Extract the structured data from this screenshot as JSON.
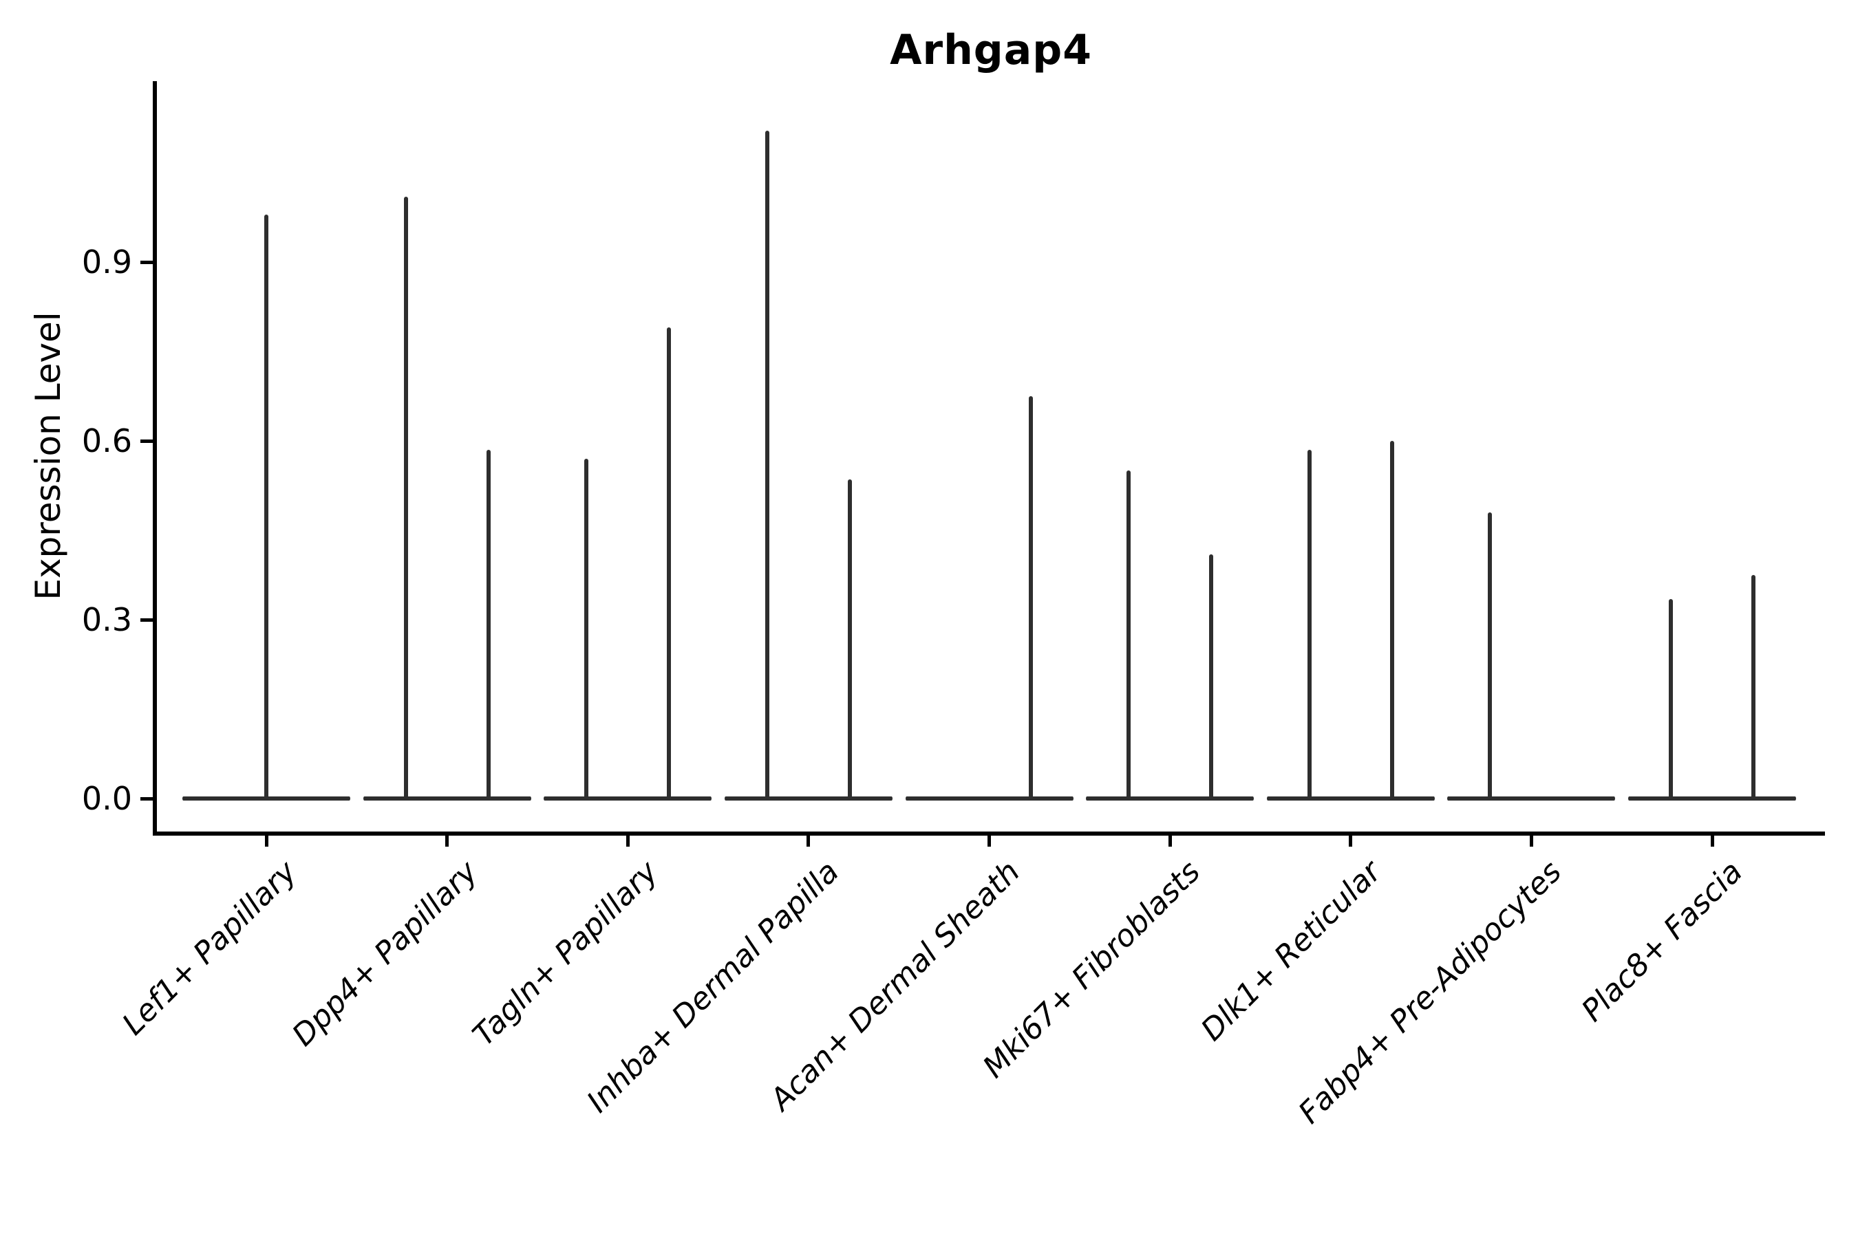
{
  "chart_data": {
    "type": "violin",
    "title": "Arhgap4",
    "ylabel": "Expression Level",
    "xlabel": "",
    "ylim": [
      0,
      1.2
    ],
    "yticks": [
      {
        "value": 0.0,
        "label": "0.0"
      },
      {
        "value": 0.3,
        "label": "0.3"
      },
      {
        "value": 0.6,
        "label": "0.6"
      },
      {
        "value": 0.9,
        "label": "0.9"
      }
    ],
    "categories": [
      "Lef1+ Papillary",
      "Dpp4+ Papillary",
      "Tagln+ Papillary",
      "Inhba+ Dermal Papilla",
      "Acan+ Dermal Sheath",
      "Mki67+ Fibroblasts",
      "Dlk1+ Reticular",
      "Fabp4+ Pre-Adipocytes",
      "Plac8+ Fascia"
    ],
    "violins": [
      {
        "category": "Lef1+ Papillary",
        "spikes": [
          {
            "slot": "center",
            "max": 0.98
          }
        ]
      },
      {
        "category": "Dpp4+ Papillary",
        "spikes": [
          {
            "slot": "left",
            "max": 1.01
          },
          {
            "slot": "right",
            "max": 0.585
          }
        ]
      },
      {
        "category": "Tagln+ Papillary",
        "spikes": [
          {
            "slot": "left",
            "max": 0.57
          },
          {
            "slot": "right",
            "max": 0.79
          }
        ]
      },
      {
        "category": "Inhba+ Dermal Papilla",
        "spikes": [
          {
            "slot": "left",
            "max": 1.12
          },
          {
            "slot": "right",
            "max": 0.535
          }
        ]
      },
      {
        "category": "Acan+ Dermal Sheath",
        "spikes": [
          {
            "slot": "right",
            "max": 0.675
          }
        ]
      },
      {
        "category": "Mki67+ Fibroblasts",
        "spikes": [
          {
            "slot": "left",
            "max": 0.55
          },
          {
            "slot": "right",
            "max": 0.41
          }
        ]
      },
      {
        "category": "Dlk1+ Reticular",
        "spikes": [
          {
            "slot": "left",
            "max": 0.585
          },
          {
            "slot": "right",
            "max": 0.6
          }
        ]
      },
      {
        "category": "Fabp4+ Pre-Adipocytes",
        "spikes": [
          {
            "slot": "left",
            "max": 0.48
          }
        ]
      },
      {
        "category": "Plac8+ Fascia",
        "spikes": [
          {
            "slot": "left",
            "max": 0.335
          },
          {
            "slot": "right",
            "max": 0.375
          }
        ]
      }
    ],
    "legend": null,
    "grid": false,
    "style": {
      "violin_color": "#2e2e2e",
      "axis_color": "#000000",
      "text_color": "#000000",
      "background": "#ffffff"
    }
  }
}
